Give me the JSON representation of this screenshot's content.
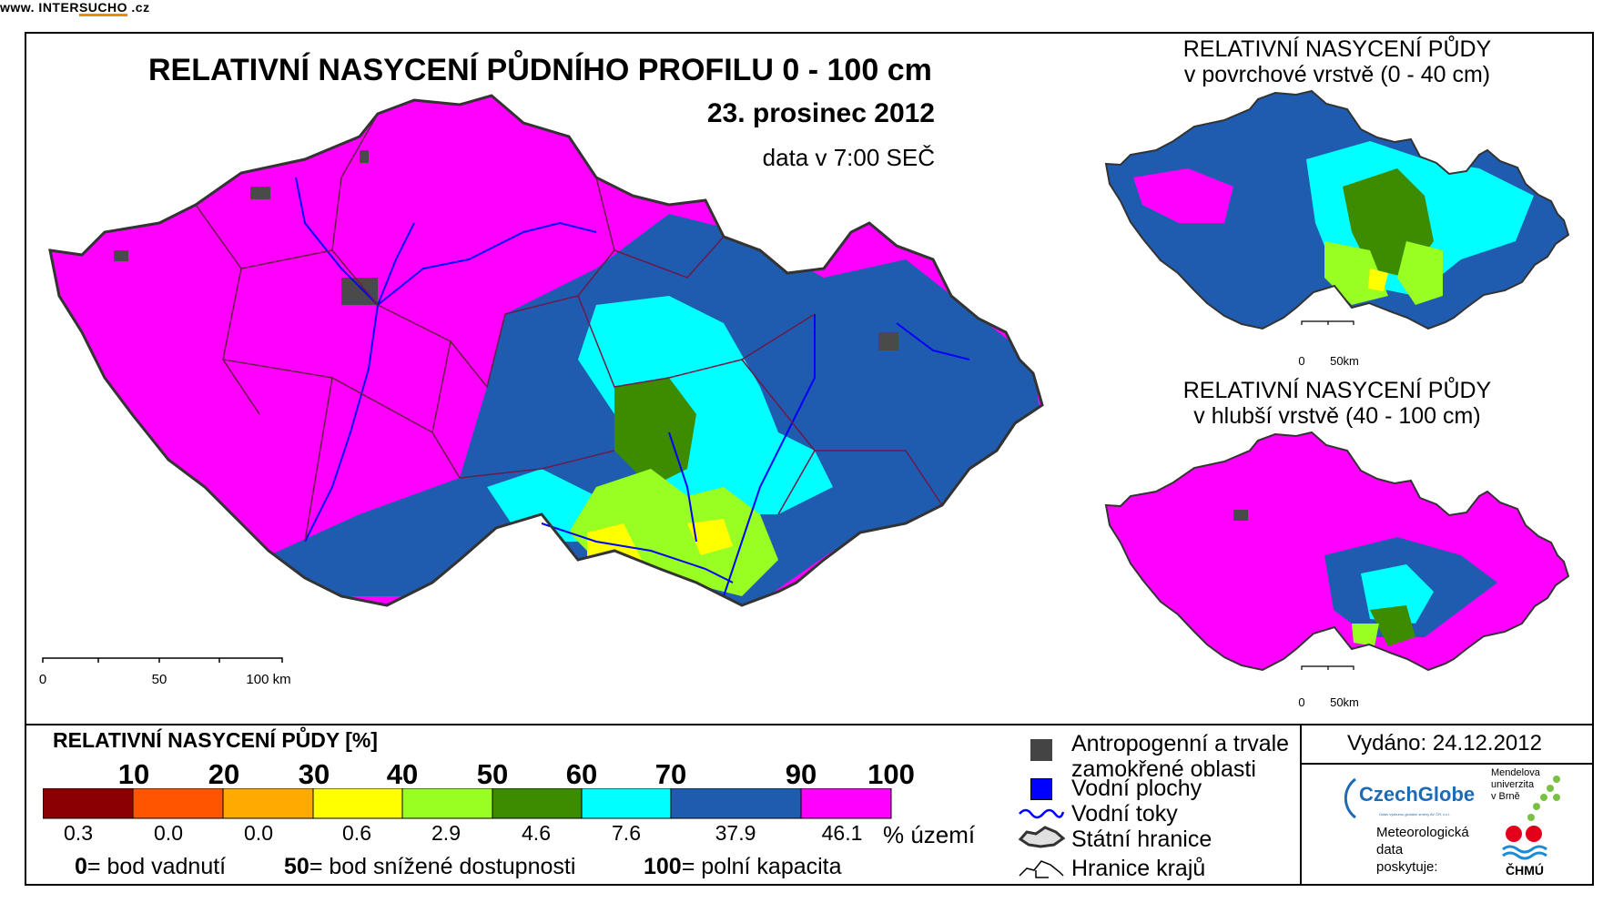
{
  "main": {
    "title": "RELATIVNÍ NASYCENÍ PŮDNÍHO PROFILU 0 - 100 cm",
    "date": "23. prosinec 2012",
    "time": "data v 7:00 SEČ",
    "site_prefix": "www. INTER",
    "site_accent": "SUCHO",
    "site_suffix": " .cz",
    "scale": [
      "0",
      "50",
      "100 km"
    ]
  },
  "insets": {
    "top_title": [
      "RELATIVNÍ NASYCENÍ PŮDY",
      "v povrchové vrstvě (0 - 40 cm)"
    ],
    "bottom_title": [
      "RELATIVNÍ NASYCENÍ PŮDY",
      "v hlubší vrstvě (40 - 100 cm)"
    ],
    "scale": [
      "0",
      "50km"
    ]
  },
  "legend": {
    "title": "RELATIVNÍ NASYCENÍ PŮDY [%]",
    "thresholds": [
      "10",
      "20",
      "30",
      "40",
      "50",
      "60",
      "70",
      "90",
      "100"
    ],
    "classes": [
      {
        "color": "#8b0000",
        "area_pct": "0.3"
      },
      {
        "color": "#ff5500",
        "area_pct": "0.0"
      },
      {
        "color": "#ffaa00",
        "area_pct": "0.0"
      },
      {
        "color": "#ffff00",
        "area_pct": "0.6"
      },
      {
        "color": "#99ff22",
        "area_pct": "2.9"
      },
      {
        "color": "#3d8c00",
        "area_pct": "4.6"
      },
      {
        "color": "#00ffff",
        "area_pct": "7.6"
      },
      {
        "color": "#1f5cb0",
        "area_pct": "37.9"
      },
      {
        "color": "#ff00ff",
        "area_pct": "46.1"
      }
    ],
    "unit": "% území",
    "definitions": [
      {
        "value": "0",
        "text": "= bod vadnutí"
      },
      {
        "value": "50",
        "text": "= bod snížené dostupnosti"
      },
      {
        "value": "100",
        "text": "= polní kapacita"
      }
    ]
  },
  "symbols": {
    "anthropogenic": [
      "Antropogenní a trvale",
      "zamokřené oblasti"
    ],
    "water_bodies": "Vodní plochy",
    "rivers": "Vodní toky",
    "state_border": "Státní hranice",
    "region_border": "Hranice krajů"
  },
  "footer": {
    "issued": "Vydáno: 24.12.2012",
    "czechglobe": "CzechGlobe",
    "czechglobe_sub": "Ústav výzkumu globální změny AV ČR, v.v.i.",
    "mendel": [
      "Mendelova",
      "univerzita",
      "v Brně"
    ],
    "meteo": [
      "Meteorologická",
      "data",
      "poskytuje:"
    ],
    "chmu": "ČHMÚ"
  },
  "colors": {
    "magenta": "#ff00ff",
    "blue": "#1f5cb0",
    "cyan": "#00ffff",
    "green": "#3d8c00",
    "lime": "#99ff22",
    "yellow": "#ffff00",
    "river": "#0000ff",
    "urban": "#4a4a4a"
  }
}
